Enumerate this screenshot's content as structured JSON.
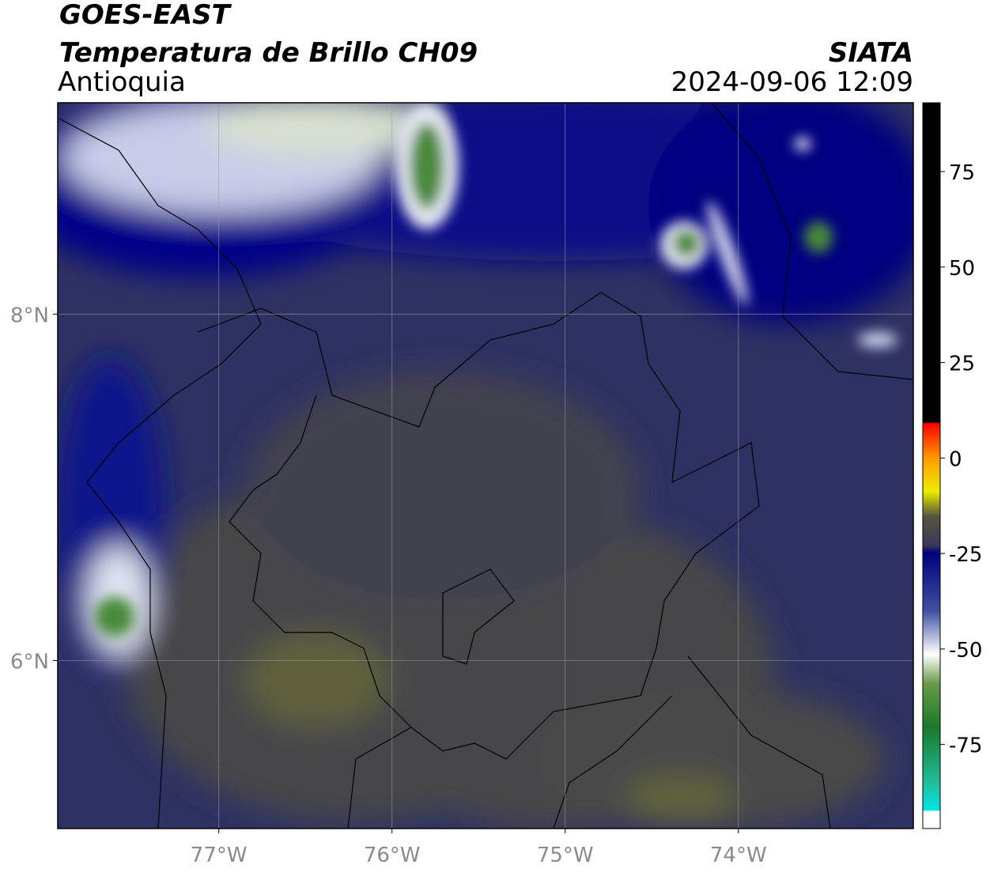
{
  "header": {
    "title": "GOES-EAST",
    "subtitle": "Temperatura de Brillo CH09",
    "region": "Antioquia",
    "source": "SIATA",
    "datetime": "2024-09-06 12:09"
  },
  "map": {
    "xlim": [
      -77.93,
      -72.99
    ],
    "ylim": [
      5.03,
      9.22
    ],
    "xticks": [
      {
        "value": -77,
        "label": "77°W"
      },
      {
        "value": -76,
        "label": "76°W"
      },
      {
        "value": -75,
        "label": "75°W"
      },
      {
        "value": -74,
        "label": "74°W"
      }
    ],
    "yticks": [
      {
        "value": 6,
        "label": "6°N"
      },
      {
        "value": 8,
        "label": "8°N"
      }
    ],
    "grid": true
  },
  "colorbar": {
    "lim": [
      -97,
      93
    ],
    "ticks": [
      -75,
      -50,
      -25,
      0,
      25,
      50,
      75
    ]
  }
}
